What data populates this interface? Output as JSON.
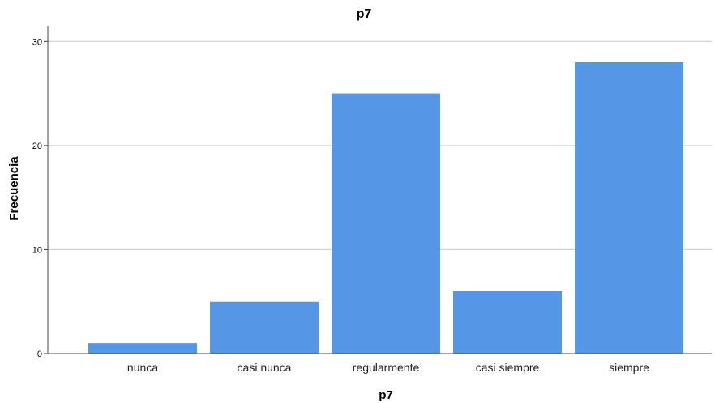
{
  "chart_data": {
    "type": "bar",
    "title": "p7",
    "xlabel": "p7",
    "ylabel": "Frecuencia",
    "categories": [
      "nunca",
      "casi nunca",
      "regularmente",
      "casi siempre",
      "siempre"
    ],
    "values": [
      1,
      5,
      25,
      6,
      28
    ],
    "ylim": [
      0,
      31.5
    ],
    "yticks": [
      0,
      10,
      20,
      30
    ],
    "grid": true,
    "legend": "none",
    "bar_color": "#5596e6",
    "grid_color": "#c8c8c8",
    "axis_color": "#444444"
  }
}
